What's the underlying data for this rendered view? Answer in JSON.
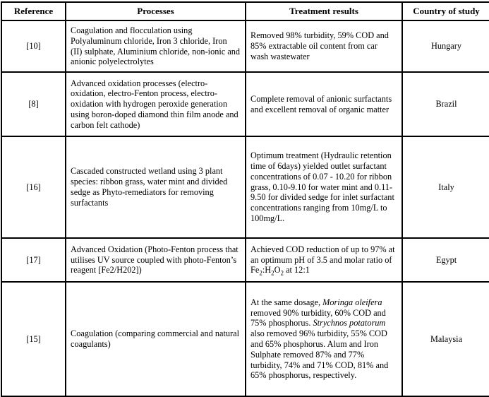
{
  "colors": {
    "border": "#000000",
    "text": "#000000",
    "background": "#ffffff"
  },
  "table": {
    "columns": [
      {
        "label": "Reference"
      },
      {
        "label": "Processes"
      },
      {
        "label": "Treatment results"
      },
      {
        "label": "Country of study"
      }
    ],
    "rows": [
      {
        "reference": "[10]",
        "processes": "Coagulation and flocculation using Polyaluminum chloride, Iron 3 chloride, Iron (II) sulphate, Aluminium chloride, non-ionic and anionic polyelectrolytes",
        "treatment": "Removed 98% turbidity, 59% COD and 85% extractable oil content from car wash wastewater",
        "country": "Hungary"
      },
      {
        "reference": "[8]",
        "processes": "Advanced oxidation processes (electro-oxidation, electro-Fenton process, electro-oxidation with hydrogen peroxide generation using boron-doped diamond thin film anode and carbon felt cathode)",
        "treatment": "Complete removal of anionic surfactants and excellent removal of organic matter",
        "country": "Brazil"
      },
      {
        "reference": "[16]",
        "processes": "Cascaded constructed wetland using 3 plant species: ribbon grass, water mint and divided sedge as Phyto-remediators for removing surfactants",
        "treatment": "Optimum treatment (Hydraulic retention time of 6days) yielded outlet surfactant concentrations of 0.07 - 10.20 for ribbon grass, 0.10-9.10 for water mint and 0.11-9.50 for divided sedge for inlet surfactant concentrations ranging from 10mg/L to 100mg/L.",
        "country": "Italy"
      },
      {
        "reference": "[17]",
        "processes": "Advanced Oxidation (Photo-Fenton process that utilises UV source coupled with photo-Fenton’s reagent [Fe2/H202])",
        "treatment": [
          {
            "t": "Achieved COD reduction of up to 97% at an optimum pH of 3.5 and molar ratio of Fe"
          },
          {
            "t": "2",
            "sub": true
          },
          {
            "t": ":H"
          },
          {
            "t": "2",
            "sub": true
          },
          {
            "t": "O"
          },
          {
            "t": "2",
            "sub": true
          },
          {
            "t": " at 12:1"
          }
        ],
        "country": "Egypt"
      },
      {
        "reference": "[15]",
        "processes": "Coagulation (comparing commercial and natural coagulants)",
        "treatment": [
          {
            "t": "At the same dosage, "
          },
          {
            "t": "Moringa oleifera",
            "i": true
          },
          {
            "t": " removed 90% turbidity, 60% COD and 75% phosphorus. "
          },
          {
            "t": "Strychnos potatorum",
            "i": true
          },
          {
            "t": " also removed 96% turbidity, 55% COD and 65% phosphorus. Alum and Iron Sulphate removed 87% and 77% turbidity, 74% and 71% COD, 81% and 65% phosphorus, respectively."
          }
        ],
        "country": "Malaysia"
      }
    ]
  }
}
